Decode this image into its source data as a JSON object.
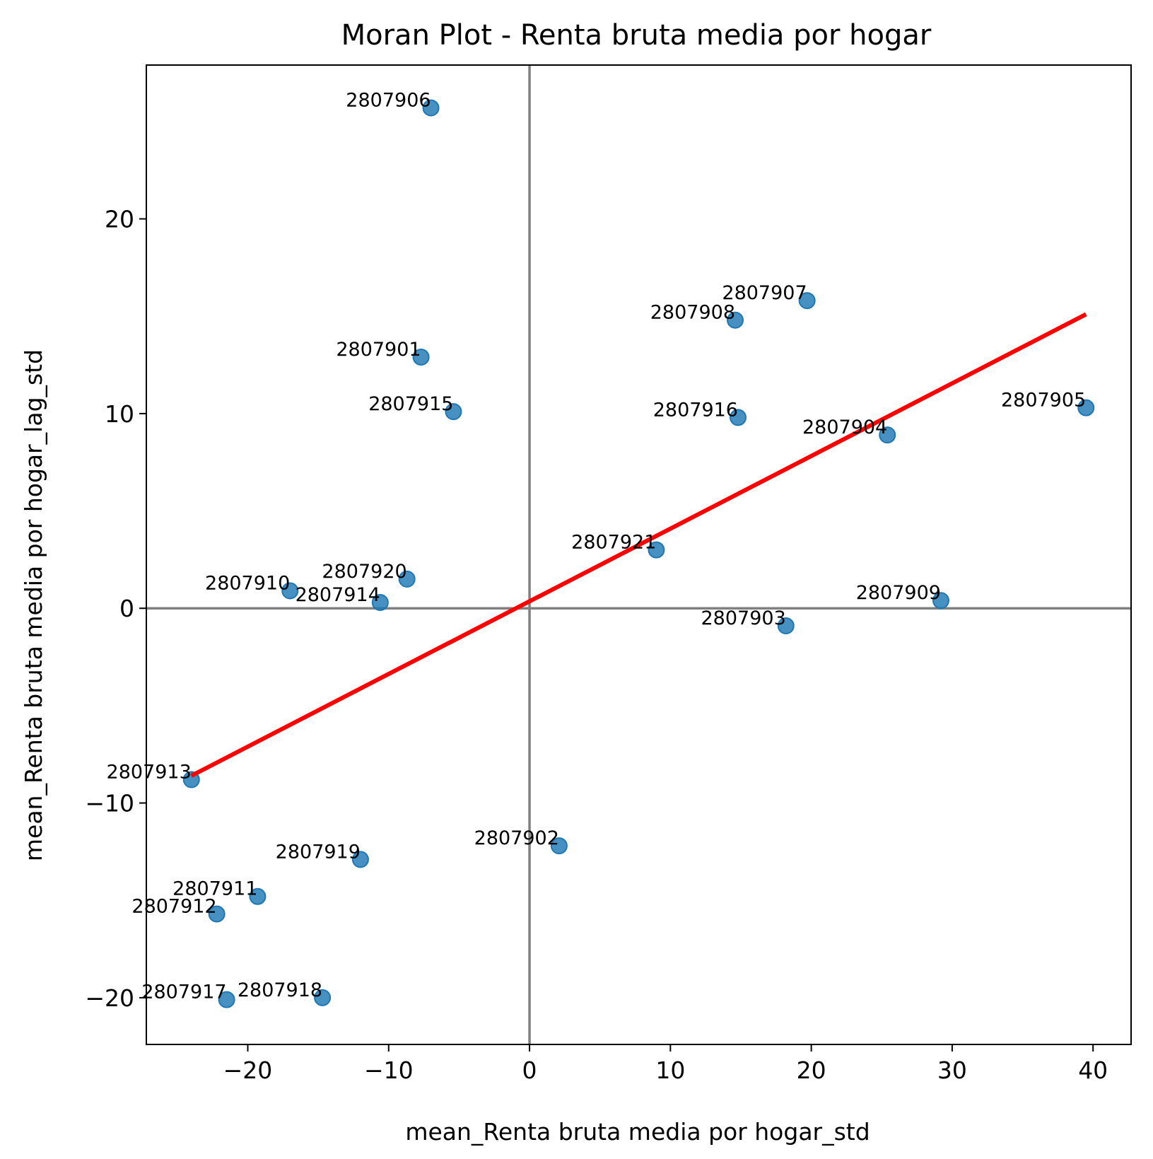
{
  "chart_data": {
    "type": "scatter",
    "title": "Moran Plot - Renta bruta media por hogar",
    "xlabel": "mean_Renta bruta media por hogar_std",
    "ylabel": "mean_Renta bruta media por hogar_lag_std",
    "xlim": [
      -27.2,
      42.7
    ],
    "ylim": [
      -22.4,
      27.9
    ],
    "xticks": [
      -20,
      -10,
      0,
      10,
      20,
      30,
      40
    ],
    "xtick_labels": [
      "−20",
      "−10",
      "0",
      "10",
      "20",
      "30",
      "40"
    ],
    "yticks": [
      -20,
      -10,
      0,
      10,
      20
    ],
    "ytick_labels": [
      "−20",
      "−10",
      "0",
      "10",
      "20"
    ],
    "reference_lines": {
      "x": 0,
      "y": 0
    },
    "grid": false,
    "legend": "none",
    "points": [
      {
        "label": "2807906",
        "x": -7.0,
        "y": 25.7
      },
      {
        "label": "2807907",
        "x": 19.7,
        "y": 15.8
      },
      {
        "label": "2807908",
        "x": 14.6,
        "y": 14.8
      },
      {
        "label": "2807901",
        "x": -7.7,
        "y": 12.9
      },
      {
        "label": "2807915",
        "x": -5.4,
        "y": 10.1
      },
      {
        "label": "2807916",
        "x": 14.8,
        "y": 9.8
      },
      {
        "label": "2807905",
        "x": 39.5,
        "y": 10.3
      },
      {
        "label": "2807904",
        "x": 25.4,
        "y": 8.9
      },
      {
        "label": "2807921",
        "x": 9.0,
        "y": 3.0
      },
      {
        "label": "2807920",
        "x": -8.7,
        "y": 1.5
      },
      {
        "label": "2807910",
        "x": -17.0,
        "y": 0.9
      },
      {
        "label": "2807914",
        "x": -10.6,
        "y": 0.3
      },
      {
        "label": "2807909",
        "x": 29.2,
        "y": 0.4
      },
      {
        "label": "2807903",
        "x": 18.2,
        "y": -0.9
      },
      {
        "label": "2807913",
        "x": -24.0,
        "y": -8.8
      },
      {
        "label": "2807902",
        "x": 2.1,
        "y": -12.2
      },
      {
        "label": "2807919",
        "x": -12.0,
        "y": -12.9
      },
      {
        "label": "2807911",
        "x": -19.3,
        "y": -14.8
      },
      {
        "label": "2807912",
        "x": -22.2,
        "y": -15.7
      },
      {
        "label": "2807917",
        "x": -21.5,
        "y": -20.1
      },
      {
        "label": "2807918",
        "x": -14.7,
        "y": -20.0
      }
    ],
    "regression_line": {
      "x": [
        -24.0,
        39.5
      ],
      "y": [
        -8.6,
        15.1
      ]
    },
    "colors": {
      "points": "#1f77b4",
      "regression": "#ff0000",
      "reference": "#808080"
    }
  }
}
